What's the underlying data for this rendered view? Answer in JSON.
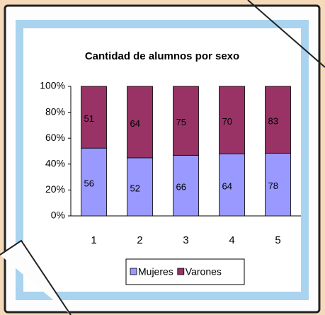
{
  "chart_data": {
    "type": "bar",
    "stack": "percent",
    "title": "Cantidad de alumnos por sexo",
    "categories": [
      "1",
      "2",
      "3",
      "4",
      "5"
    ],
    "series": [
      {
        "name": "Mujeres",
        "color": "#9999ff",
        "values": [
          56,
          52,
          66,
          64,
          78
        ]
      },
      {
        "name": "Varones",
        "color": "#993366",
        "values": [
          51,
          64,
          75,
          70,
          83
        ]
      }
    ],
    "ylim": [
      0,
      100
    ],
    "yticks": [
      {
        "value": 0,
        "label": "0%"
      },
      {
        "value": 20,
        "label": "20%"
      },
      {
        "value": 40,
        "label": "40%"
      },
      {
        "value": 60,
        "label": "60%"
      },
      {
        "value": 80,
        "label": "80%"
      },
      {
        "value": 100,
        "label": "100%"
      }
    ],
    "legend": "bottom"
  }
}
